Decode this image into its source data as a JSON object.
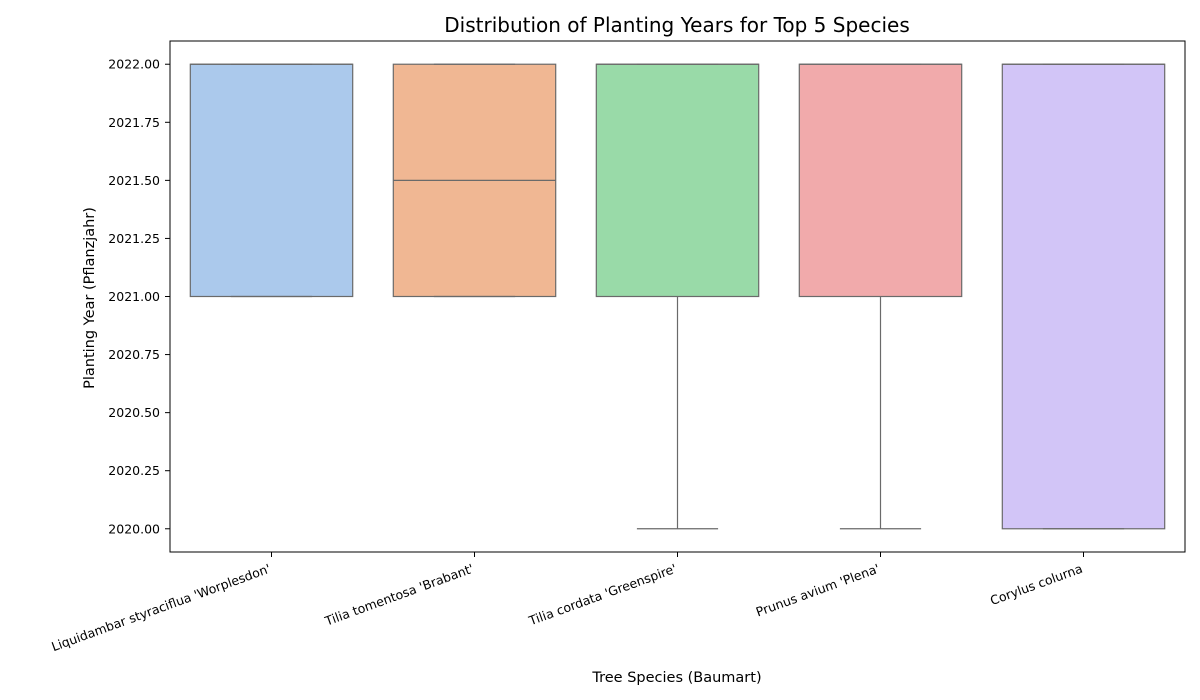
{
  "chart_data": {
    "type": "box",
    "title": "Distribution of Planting Years for Top 5 Species",
    "xlabel": "Tree Species (Baumart)",
    "ylabel": "Planting Year (Pflanzjahr)",
    "ylim": [
      2019.9,
      2022.1
    ],
    "yticks": [
      2020.0,
      2020.25,
      2020.5,
      2020.75,
      2021.0,
      2021.25,
      2021.5,
      2021.75,
      2022.0
    ],
    "ytick_labels": [
      "2020.00",
      "2020.25",
      "2020.50",
      "2020.75",
      "2021.00",
      "2021.25",
      "2021.50",
      "2021.75",
      "2022.00"
    ],
    "grid": false,
    "categories": [
      "Liquidambar styraciflua 'Worplesdon'",
      "Tilia tomentosa 'Brabant'",
      "Tilia cordata 'Greenspire'",
      "Prunus avium 'Plena'",
      "Corylus colurna"
    ],
    "boxes": [
      {
        "min": 2021.0,
        "q1": 2021.0,
        "median": 2022.0,
        "q3": 2022.0,
        "max": 2022.0,
        "color": "#abc9ec"
      },
      {
        "min": 2021.0,
        "q1": 2021.0,
        "median": 2021.5,
        "q3": 2022.0,
        "max": 2022.0,
        "color": "#f0b793"
      },
      {
        "min": 2020.0,
        "q1": 2021.0,
        "median": 2022.0,
        "q3": 2022.0,
        "max": 2022.0,
        "color": "#99daa8"
      },
      {
        "min": 2020.0,
        "q1": 2021.0,
        "median": 2022.0,
        "q3": 2022.0,
        "max": 2022.0,
        "color": "#f1aaab"
      },
      {
        "min": 2020.0,
        "q1": 2020.0,
        "median": 2022.0,
        "q3": 2022.0,
        "max": 2022.0,
        "color": "#d2c5f7"
      }
    ]
  }
}
